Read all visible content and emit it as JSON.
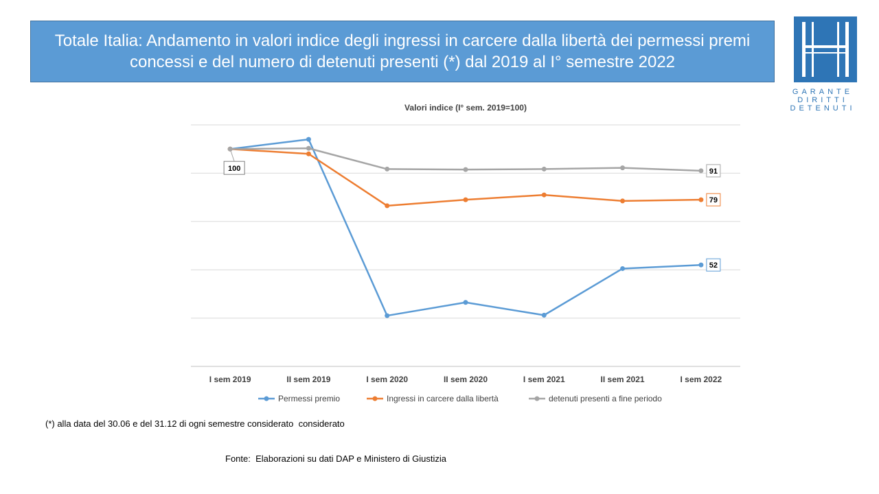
{
  "title": "Totale Italia: Andamento in valori indice degli ingressi in carcere dalla libertà dei permessi premi concessi e del numero di detenuti presenti (*) dal 2019 al I° semestre 2022",
  "logo": {
    "line1": "GARANTE",
    "line2": "DIRITTI",
    "line3": "DETENUTI"
  },
  "footnote": "(*) alla data del 30.06 e del 31.12 di ogni semestre considerato  considerato",
  "source": "Fonte:  Elaborazioni su dati DAP e Ministero di Giustizia",
  "colors": {
    "title_bg": "#5b9bd5",
    "blue": "#5b9bd5",
    "orange": "#ed7d31",
    "gray": "#a5a5a5",
    "logo": "#2e75b6"
  },
  "chart_data": {
    "type": "line",
    "title": "Valori indice (I° sem. 2019=100)",
    "categories": [
      "I sem 2019",
      "II sem 2019",
      "I sem 2020",
      "II sem 2020",
      "I sem 2021",
      "II sem 2021",
      "I sem 2022"
    ],
    "ylim": [
      10,
      110
    ],
    "grid": true,
    "legend_position": "bottom",
    "series": [
      {
        "name": "Permessi premio",
        "color": "#5b9bd5",
        "values": [
          100,
          104,
          31,
          36.5,
          31.2,
          50.5,
          52
        ],
        "end_label": "52"
      },
      {
        "name": "Ingressi in carcere dalla libertà",
        "color": "#ed7d31",
        "values": [
          100,
          98,
          76.5,
          79,
          81,
          78.5,
          79
        ],
        "end_label": "79"
      },
      {
        "name": "detenuti presenti a fine periodo",
        "color": "#a5a5a5",
        "values": [
          100,
          100.3,
          91.7,
          91.5,
          91.7,
          92.2,
          91
        ],
        "end_label": "91"
      }
    ],
    "start_label": "100"
  }
}
